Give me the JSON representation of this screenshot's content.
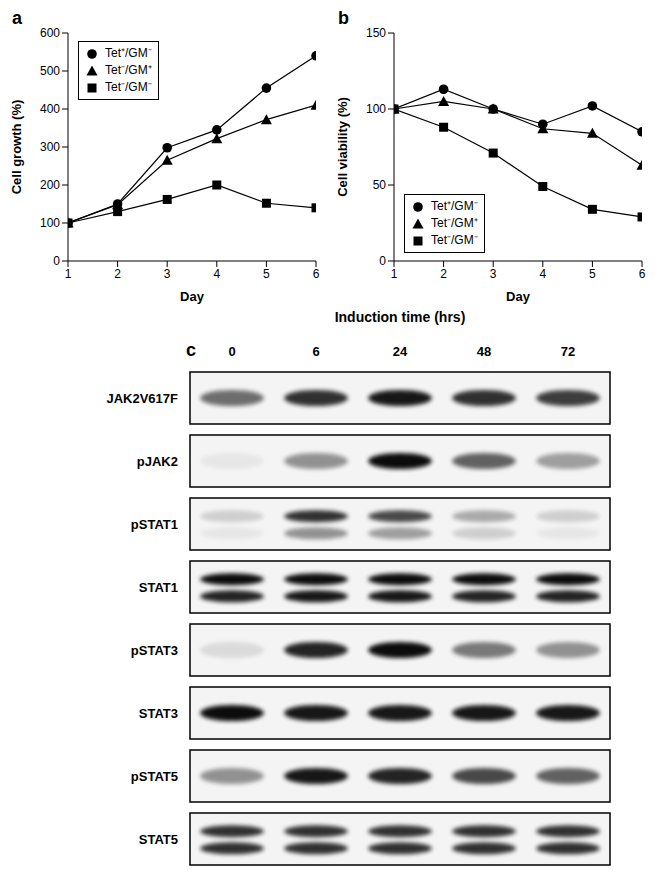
{
  "chart_data": [
    {
      "type": "line",
      "title": "a",
      "x_label": "Day",
      "y_label": "Cell growth (%)",
      "x": [
        1,
        2,
        3,
        4,
        5,
        6
      ],
      "xlim": [
        1,
        6
      ],
      "xticks": [
        1,
        2,
        3,
        4,
        5,
        6
      ],
      "ylim": [
        0,
        600
      ],
      "yticks": [
        0,
        100,
        200,
        300,
        400,
        500,
        600
      ],
      "legend": "top-left",
      "series": [
        {
          "name": "Tet⁺/GM⁻",
          "color": "#000000",
          "marker": "circle",
          "values": [
            100,
            150,
            298,
            345,
            455,
            540
          ]
        },
        {
          "name": "Tet⁻/GM⁺",
          "color": "#000000",
          "marker": "triangle",
          "values": [
            100,
            148,
            265,
            322,
            372,
            410
          ]
        },
        {
          "name": "Tet⁻/GM⁻",
          "color": "#000000",
          "marker": "square",
          "values": [
            100,
            130,
            162,
            200,
            152,
            140
          ]
        }
      ]
    },
    {
      "type": "line",
      "title": "b",
      "x_label": "Day",
      "y_label": "Cell viability (%)",
      "x": [
        1,
        2,
        3,
        4,
        5,
        6
      ],
      "xlim": [
        1,
        6
      ],
      "xticks": [
        1,
        2,
        3,
        4,
        5,
        6
      ],
      "ylim": [
        0,
        150
      ],
      "yticks": [
        0,
        50,
        100,
        150
      ],
      "legend": "bottom-left",
      "series": [
        {
          "name": "Tet⁺/GM⁻",
          "color": "#000000",
          "marker": "circle",
          "values": [
            100,
            113,
            100,
            90,
            102,
            85
          ]
        },
        {
          "name": "Tet⁻/GM⁺",
          "color": "#000000",
          "marker": "triangle",
          "values": [
            100,
            105,
            100,
            87,
            84,
            63
          ]
        },
        {
          "name": "Tet⁻/GM⁻",
          "color": "#000000",
          "marker": "square",
          "values": [
            100,
            88,
            71,
            49,
            34,
            29
          ]
        }
      ]
    }
  ],
  "blot": {
    "title": "c",
    "lane_title": "Induction time (hrs)",
    "lanes": [
      0,
      6,
      24,
      48,
      72
    ],
    "rows": [
      {
        "label": "JAK2V617F",
        "intensities": [
          0.55,
          0.8,
          0.9,
          0.8,
          0.75
        ]
      },
      {
        "label": "pJAK2",
        "intensities": [
          0.05,
          0.4,
          0.95,
          0.6,
          0.35
        ]
      },
      {
        "label": "pSTAT1",
        "intensities": [
          0.15,
          0.8,
          0.7,
          0.3,
          0.15
        ],
        "lower_intensities": [
          0.05,
          0.4,
          0.35,
          0.15,
          0.05
        ]
      },
      {
        "label": "STAT1",
        "intensities": [
          0.95,
          0.95,
          0.95,
          0.95,
          0.95
        ],
        "lower_intensities": [
          0.85,
          0.9,
          0.9,
          0.85,
          0.85
        ]
      },
      {
        "label": "pSTAT3",
        "intensities": [
          0.1,
          0.85,
          0.95,
          0.5,
          0.4
        ]
      },
      {
        "label": "STAT3",
        "intensities": [
          0.95,
          0.9,
          0.9,
          0.9,
          0.9
        ]
      },
      {
        "label": "pSTAT5",
        "intensities": [
          0.4,
          0.9,
          0.85,
          0.7,
          0.6
        ]
      },
      {
        "label": "STAT5",
        "intensities": [
          0.8,
          0.8,
          0.8,
          0.8,
          0.8
        ],
        "lower_intensities": [
          0.8,
          0.8,
          0.8,
          0.8,
          0.8
        ]
      }
    ]
  }
}
